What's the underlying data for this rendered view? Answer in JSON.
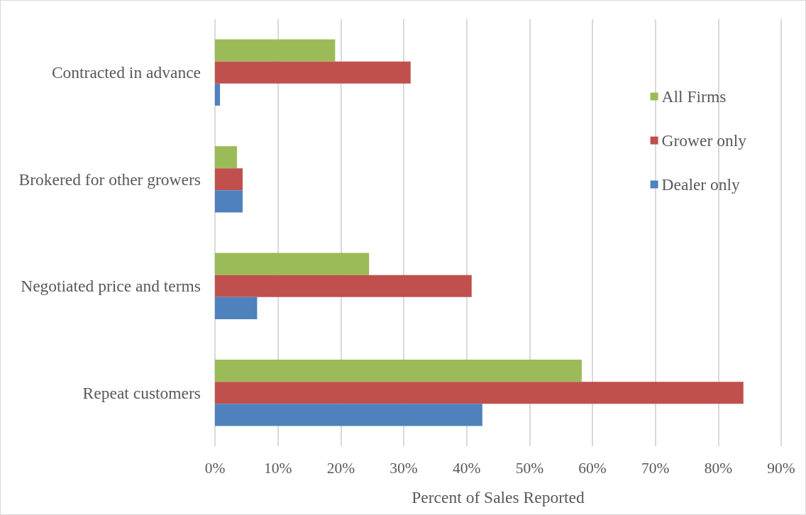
{
  "chart_data": {
    "type": "bar",
    "orientation": "horizontal",
    "xlabel": "Percent of Sales Reported",
    "categories": [
      "Contracted in advance",
      "Brokered for other growers",
      "Negotiated price and terms",
      "Repeat customers"
    ],
    "series": [
      {
        "name": "All Firms",
        "color": "#9bbb59",
        "values": [
          19.1,
          3.5,
          24.5,
          58.3
        ]
      },
      {
        "name": "Grower only",
        "color": "#c0504d",
        "values": [
          31.1,
          4.4,
          40.8,
          84.0
        ]
      },
      {
        "name": "Dealer only",
        "color": "#4f81bd",
        "values": [
          0.8,
          4.4,
          6.7,
          42.5
        ]
      }
    ],
    "xlim": [
      0,
      90
    ],
    "xticks": [
      {
        "value": 0,
        "label": "0%"
      },
      {
        "value": 10,
        "label": "10%"
      },
      {
        "value": 20,
        "label": "20%"
      },
      {
        "value": 30,
        "label": "30%"
      },
      {
        "value": 40,
        "label": "40%"
      },
      {
        "value": 50,
        "label": "50%"
      },
      {
        "value": 60,
        "label": "60%"
      },
      {
        "value": 70,
        "label": "70%"
      },
      {
        "value": 80,
        "label": "80%"
      },
      {
        "value": 90,
        "label": "90%"
      }
    ],
    "grid": "x",
    "legend": "top right"
  }
}
